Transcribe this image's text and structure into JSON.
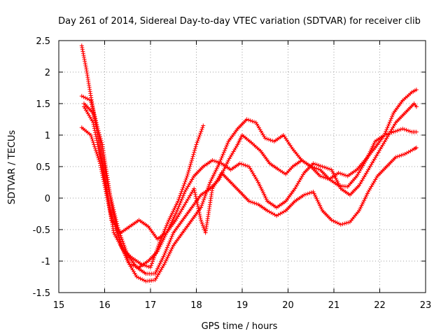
{
  "chart_data": {
    "type": "line",
    "title": "Day 261 of 2014, Sidereal Day-to-day VTEC variation (SDTVAR) for receiver clib",
    "xlabel": "GPS time / hours",
    "ylabel": "SDTVAR / TECUs",
    "xlim": [
      15,
      23
    ],
    "ylim": [
      -1.5,
      2.5
    ],
    "xticks": [
      15,
      16,
      17,
      18,
      19,
      20,
      21,
      22,
      23
    ],
    "yticks": [
      -1.5,
      -1,
      -0.5,
      0,
      0.5,
      1,
      1.5,
      2,
      2.5
    ],
    "xtick_labels": [
      "15",
      "16",
      "17",
      "18",
      "19",
      "20",
      "21",
      "22",
      "23"
    ],
    "ytick_labels": [
      "-1.5",
      "-1",
      "-0.5",
      "0",
      "0.5",
      "1",
      "1.5",
      "2",
      "2.5"
    ],
    "grid": true,
    "marker": "+",
    "color": "#ff0000",
    "series": [
      {
        "name": "s1",
        "x": [
          15.5,
          15.6,
          15.75,
          16.0,
          16.2,
          16.4,
          16.6,
          16.8,
          17.0,
          17.2,
          17.4,
          17.6,
          17.8,
          18.0,
          18.15
        ],
        "y": [
          2.42,
          2.05,
          1.4,
          0.35,
          -0.55,
          -0.82,
          -0.95,
          -1.05,
          -1.1,
          -0.7,
          -0.35,
          -0.05,
          0.35,
          0.85,
          1.15
        ]
      },
      {
        "name": "s2",
        "x": [
          15.5,
          15.7,
          15.85,
          16.1,
          16.3,
          16.5,
          16.7,
          16.9,
          17.1,
          17.3,
          17.5,
          17.7,
          17.9,
          18.1,
          18.3,
          18.5,
          18.7,
          18.9,
          19.0,
          19.2,
          19.4,
          19.6,
          19.8,
          19.95,
          20.1,
          20.3,
          20.5,
          20.7,
          20.9,
          21.1,
          21.3,
          21.5,
          21.7,
          21.9,
          22.1,
          22.3,
          22.5,
          22.7,
          22.8
        ],
        "y": [
          1.62,
          1.55,
          1.1,
          0.1,
          -0.5,
          -0.9,
          -1.1,
          -1.2,
          -1.2,
          -0.9,
          -0.55,
          -0.35,
          -0.15,
          0.05,
          0.15,
          0.3,
          0.6,
          0.85,
          1.0,
          0.88,
          0.75,
          0.55,
          0.45,
          0.38,
          0.5,
          0.6,
          0.5,
          0.35,
          0.3,
          0.4,
          0.35,
          0.45,
          0.62,
          0.8,
          1.0,
          1.35,
          1.55,
          1.68,
          1.72
        ]
      },
      {
        "name": "s3",
        "x": [
          15.5,
          15.7,
          15.9,
          16.1,
          16.3,
          16.5,
          16.7,
          16.9,
          17.1,
          17.3,
          17.5,
          17.7,
          17.9,
          18.1,
          18.3,
          18.5,
          18.7,
          18.9,
          19.1,
          19.3,
          19.5,
          19.7,
          19.9,
          20.1,
          20.3,
          20.5,
          20.7,
          20.9,
          21.1,
          21.3,
          21.5,
          21.7,
          21.9,
          22.1,
          22.3,
          22.5,
          22.7,
          22.8
        ],
        "y": [
          1.12,
          1.0,
          0.55,
          -0.15,
          -0.6,
          -1.0,
          -1.25,
          -1.32,
          -1.3,
          -1.05,
          -0.75,
          -0.55,
          -0.35,
          -0.15,
          0.25,
          0.55,
          0.9,
          1.1,
          1.25,
          1.2,
          0.95,
          0.9,
          1.0,
          0.78,
          0.6,
          0.5,
          0.45,
          0.3,
          0.2,
          0.18,
          0.35,
          0.6,
          0.9,
          1.0,
          1.05,
          1.1,
          1.05,
          1.05
        ]
      },
      {
        "name": "s4",
        "x": [
          15.55,
          15.75,
          15.95,
          16.15,
          16.35,
          16.55,
          16.75,
          16.95,
          17.15,
          17.35,
          17.55,
          17.75,
          17.95,
          18.15,
          18.35,
          18.55,
          18.75,
          18.95,
          19.15,
          19.35,
          19.55,
          19.75,
          19.95,
          20.15,
          20.35,
          20.55,
          20.75,
          20.95,
          21.15,
          21.35,
          21.55,
          21.75,
          21.95,
          22.15,
          22.35,
          22.55,
          22.75,
          22.8
        ],
        "y": [
          1.5,
          1.35,
          0.85,
          -0.1,
          -0.75,
          -1.05,
          -1.1,
          -1.0,
          -0.85,
          -0.55,
          -0.25,
          0.1,
          0.35,
          0.5,
          0.6,
          0.55,
          0.45,
          0.55,
          0.5,
          0.25,
          -0.05,
          -0.15,
          -0.05,
          0.15,
          0.4,
          0.55,
          0.5,
          0.45,
          0.15,
          0.05,
          0.2,
          0.45,
          0.7,
          0.95,
          1.2,
          1.35,
          1.5,
          1.45
        ]
      },
      {
        "name": "s5",
        "x": [
          15.55,
          15.75,
          15.95,
          16.15,
          16.35,
          16.55,
          16.75,
          16.95,
          17.15,
          17.35,
          17.55,
          17.75,
          17.95,
          18.1,
          18.2,
          18.35,
          18.55,
          18.75,
          18.95,
          19.15,
          19.35,
          19.55,
          19.75,
          19.95,
          20.15,
          20.35,
          20.55,
          20.75,
          20.95,
          21.15,
          21.35,
          21.55,
          21.75,
          21.95,
          22.15,
          22.35,
          22.55,
          22.75,
          22.8
        ],
        "y": [
          1.45,
          1.2,
          0.5,
          -0.35,
          -0.55,
          -0.45,
          -0.35,
          -0.45,
          -0.65,
          -0.55,
          -0.35,
          -0.1,
          0.15,
          -0.35,
          -0.55,
          0.15,
          0.4,
          0.25,
          0.1,
          -0.05,
          -0.1,
          -0.2,
          -0.28,
          -0.2,
          -0.05,
          0.05,
          0.1,
          -0.2,
          -0.35,
          -0.42,
          -0.38,
          -0.2,
          0.1,
          0.35,
          0.5,
          0.65,
          0.7,
          0.78,
          0.8
        ]
      }
    ]
  }
}
